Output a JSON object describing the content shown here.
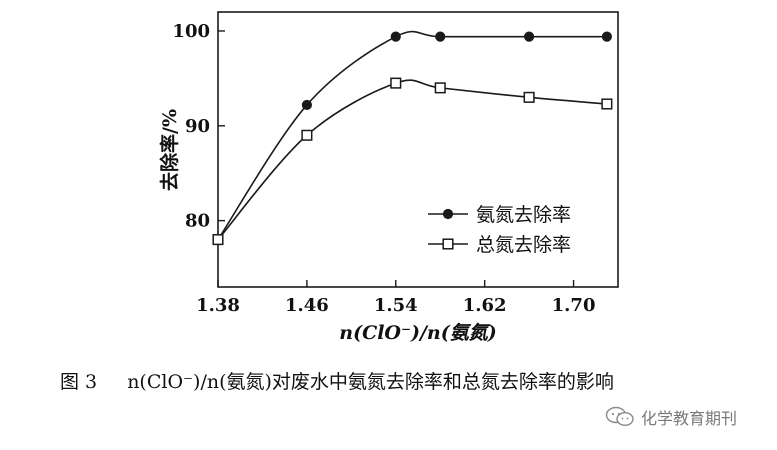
{
  "chart_data": {
    "type": "line",
    "x": [
      1.38,
      1.46,
      1.54,
      1.58,
      1.66,
      1.73
    ],
    "series": [
      {
        "name": "氨氮去除率",
        "marker": "filled-circle",
        "values": [
          78,
          92.2,
          99.4,
          99.4,
          99.4,
          99.4
        ]
      },
      {
        "name": "总氮去除率",
        "marker": "open-square",
        "values": [
          78,
          89,
          94.5,
          94,
          93,
          92.3
        ]
      }
    ],
    "xlabel": "n(ClO⁻)/n(氨氮)",
    "ylabel": "去除率/%",
    "xticks": [
      "1.38",
      "1.46",
      "1.54",
      "1.62",
      "1.70"
    ],
    "yticks": [
      "80",
      "90",
      "100"
    ],
    "xlim": [
      1.38,
      1.74
    ],
    "ylim": [
      73,
      102
    ],
    "legend": "bottom-right",
    "grid": false
  },
  "caption": {
    "figure_number": "图 3",
    "text": "n(ClO⁻)/n(氨氮)对废水中氨氮去除率和总氮去除率的影响"
  },
  "watermark": {
    "text": "化学教育期刊",
    "icon": "wechat-icon"
  },
  "colors": {
    "line": "#1a1a1a",
    "background": "#ffffff",
    "watermark": "#7a7a7a"
  }
}
